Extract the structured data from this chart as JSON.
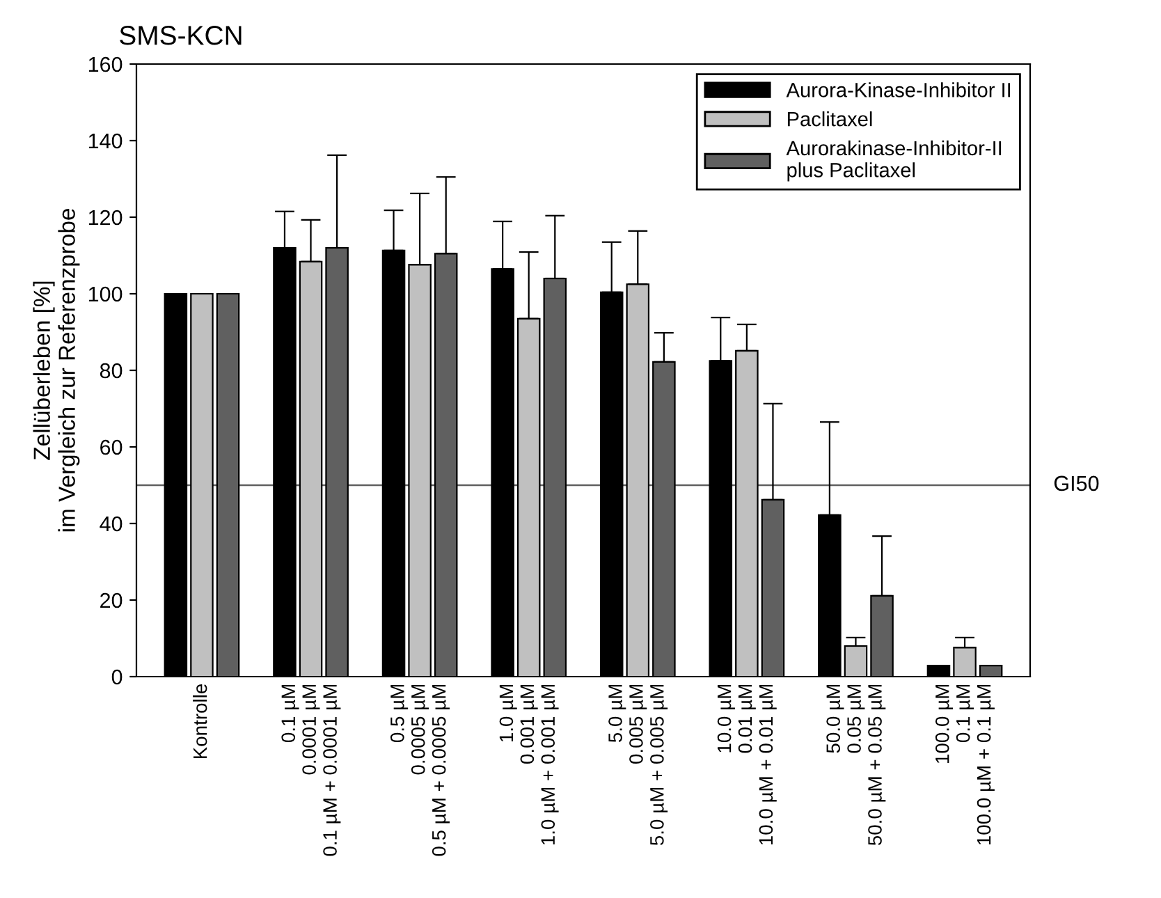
{
  "chart_data": {
    "type": "bar",
    "title": "SMS-KCN",
    "ylabel": "Zellüberleben [%]\nim Vergleich zur Referenzprobe",
    "categories": [
      "Kontrolle",
      "0.1 µM\n0.0001 µM\n0.1 µM + 0.0001 µM",
      "0.5 µM\n0.0005 µM\n0.5 µM + 0.0005 µM",
      "1.0 µM\n0.001 µM\n1.0 µM + 0.001 µM",
      "5.0 µM\n0.005 µM\n5.0 µM + 0.005 µM",
      "10.0 µM\n0.01 µM\n10.0 µM + 0.01 µM",
      "50.0 µM\n0.05 µM\n50.0 µM + 0.05 µM",
      "100.0 µM\n0.1 µM\n100.0 µM + 0.1 µM"
    ],
    "series": [
      {
        "name": "Aurora-Kinase-Inhibitor II",
        "color": "#000000",
        "values": [
          100,
          112,
          111.3,
          106.5,
          100.4,
          82.5,
          42.2,
          2.9
        ],
        "errors": [
          null,
          [
            112,
            121.5
          ],
          [
            111.3,
            121.8
          ],
          [
            106.5,
            118.9
          ],
          [
            100.4,
            113.5
          ],
          [
            82.5,
            93.8
          ],
          [
            42.2,
            66.5
          ],
          null
        ]
      },
      {
        "name": "Paclitaxel",
        "color": "#c0c0c0",
        "values": [
          100,
          108.4,
          107.6,
          93.5,
          102.5,
          85.1,
          8,
          7.6
        ],
        "errors": [
          null,
          [
            108.4,
            119.3
          ],
          [
            107.6,
            126.2
          ],
          [
            93.5,
            110.9
          ],
          [
            102.5,
            116.4
          ],
          [
            85.1,
            92
          ],
          [
            8,
            10.2
          ],
          [
            7.6,
            10.2
          ]
        ]
      },
      {
        "name": "Aurorakinase-Inhibitor-II\nplus Paclitaxel",
        "color": "#606060",
        "values": [
          100,
          112,
          110.5,
          104,
          82.2,
          46.2,
          21.1,
          2.9
        ],
        "errors": [
          null,
          [
            112,
            136.2
          ],
          [
            110.5,
            130.5
          ],
          [
            104,
            120.4
          ],
          [
            82.2,
            89.8
          ],
          [
            46.2,
            71.3
          ],
          [
            21.1,
            36.7
          ],
          null
        ]
      }
    ],
    "ylim": [
      0,
      160
    ],
    "yticks": [
      0,
      20,
      40,
      60,
      80,
      100,
      120,
      140,
      160
    ],
    "ref_lines": [
      {
        "axis": "y",
        "value": 50,
        "label": "GI50",
        "color": "#606060"
      }
    ],
    "grid": false,
    "legend": "top right"
  }
}
